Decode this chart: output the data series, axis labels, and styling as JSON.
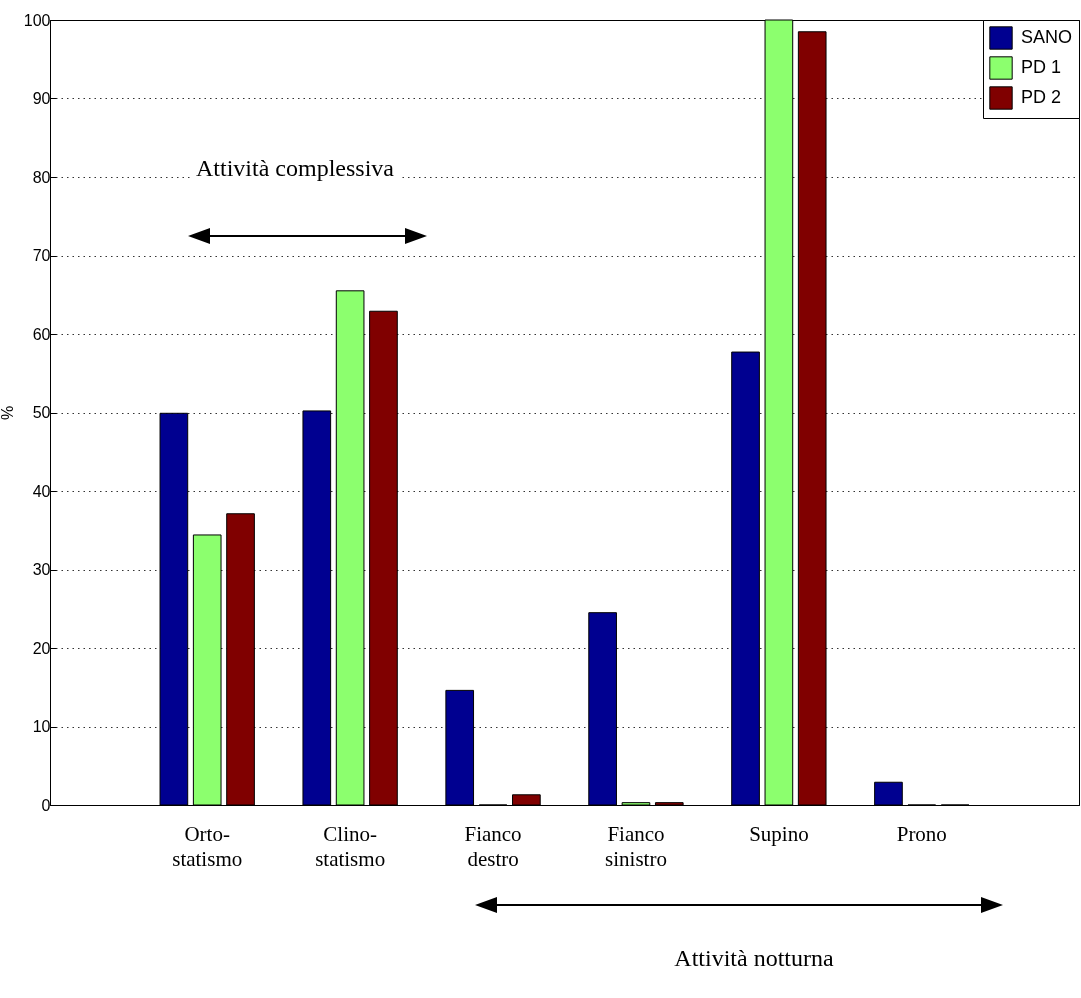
{
  "chart_data": {
    "type": "bar",
    "ylabel": "%",
    "categories": [
      "Orto-statismo",
      "Clino-statismo",
      "Fianco destro",
      "Fianco sinistro",
      "Supino",
      "Prono"
    ],
    "series": [
      {
        "name": "SANO",
        "color": "#000090",
        "values": [
          49.9,
          50.2,
          14.6,
          24.5,
          57.7,
          2.9
        ]
      },
      {
        "name": "PD 1",
        "color": "#8cff6e",
        "values": [
          34.4,
          65.5,
          0,
          0.3,
          100,
          0
        ]
      },
      {
        "name": "PD 2",
        "color": "#800000",
        "values": [
          37.1,
          62.9,
          1.3,
          0.3,
          98.5,
          0
        ]
      }
    ],
    "ylim": [
      0,
      100
    ],
    "yticks": [
      0,
      10,
      20,
      30,
      40,
      50,
      60,
      70,
      80,
      90,
      100
    ],
    "grid": "y",
    "legend": "top right",
    "annotations": [
      "Attività complessiva",
      "Attività notturna"
    ]
  }
}
